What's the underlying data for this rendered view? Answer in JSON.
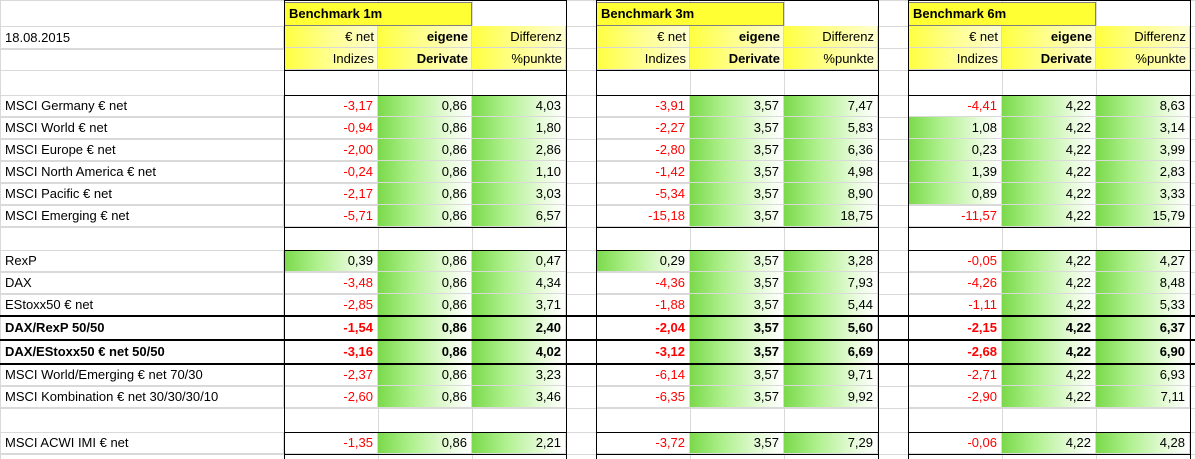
{
  "date": "18.08.2015",
  "benchmarks": [
    {
      "label": "Benchmark 1m"
    },
    {
      "label": "Benchmark 3m"
    },
    {
      "label": "Benchmark 6m"
    }
  ],
  "col_headers": {
    "net_line1": "€ net",
    "net_line2": "Indizes",
    "eig_line1": "eigene",
    "eig_line2": "Derivate",
    "diff_line1": "Differenz",
    "diff_line2": "%punkte"
  },
  "rows": [
    {
      "label": "MSCI Germany € net",
      "bold": false,
      "vals": [
        [
          "-3,17",
          "0,86",
          "4,03"
        ],
        [
          "-3,91",
          "3,57",
          "7,47"
        ],
        [
          "-4,41",
          "4,22",
          "8,63"
        ]
      ]
    },
    {
      "label": "MSCI World € net",
      "bold": false,
      "vals": [
        [
          "-0,94",
          "0,86",
          "1,80"
        ],
        [
          "-2,27",
          "3,57",
          "5,83"
        ],
        [
          "1,08",
          "4,22",
          "3,14"
        ]
      ]
    },
    {
      "label": "MSCI Europe € net",
      "bold": false,
      "vals": [
        [
          "-2,00",
          "0,86",
          "2,86"
        ],
        [
          "-2,80",
          "3,57",
          "6,36"
        ],
        [
          "0,23",
          "4,22",
          "3,99"
        ]
      ]
    },
    {
      "label": "MSCI North America € net",
      "bold": false,
      "vals": [
        [
          "-0,24",
          "0,86",
          "1,10"
        ],
        [
          "-1,42",
          "3,57",
          "4,98"
        ],
        [
          "1,39",
          "4,22",
          "2,83"
        ]
      ]
    },
    {
      "label": "MSCI Pacific € net",
      "bold": false,
      "vals": [
        [
          "-2,17",
          "0,86",
          "3,03"
        ],
        [
          "-5,34",
          "3,57",
          "8,90"
        ],
        [
          "0,89",
          "4,22",
          "3,33"
        ]
      ]
    },
    {
      "label": "MSCI Emerging € net",
      "bold": false,
      "vals": [
        [
          "-5,71",
          "0,86",
          "6,57"
        ],
        [
          "-15,18",
          "3,57",
          "18,75"
        ],
        [
          "-11,57",
          "4,22",
          "15,79"
        ]
      ]
    },
    null,
    {
      "label": "RexP",
      "bold": false,
      "vals": [
        [
          "0,39",
          "0,86",
          "0,47"
        ],
        [
          "0,29",
          "3,57",
          "3,28"
        ],
        [
          "-0,05",
          "4,22",
          "4,27"
        ]
      ]
    },
    {
      "label": "DAX",
      "bold": false,
      "vals": [
        [
          "-3,48",
          "0,86",
          "4,34"
        ],
        [
          "-4,36",
          "3,57",
          "7,93"
        ],
        [
          "-4,26",
          "4,22",
          "8,48"
        ]
      ]
    },
    {
      "label": "EStoxx50 € net",
      "bold": false,
      "vals": [
        [
          "-2,85",
          "0,86",
          "3,71"
        ],
        [
          "-1,88",
          "3,57",
          "5,44"
        ],
        [
          "-1,11",
          "4,22",
          "5,33"
        ]
      ]
    },
    {
      "label": "DAX/RexP 50/50",
      "bold": true,
      "vals": [
        [
          "-1,54",
          "0,86",
          "2,40"
        ],
        [
          "-2,04",
          "3,57",
          "5,60"
        ],
        [
          "-2,15",
          "4,22",
          "6,37"
        ]
      ]
    },
    {
      "label": "DAX/EStoxx50 € net 50/50",
      "bold": true,
      "vals": [
        [
          "-3,16",
          "0,86",
          "4,02"
        ],
        [
          "-3,12",
          "3,57",
          "6,69"
        ],
        [
          "-2,68",
          "4,22",
          "6,90"
        ]
      ]
    },
    {
      "label": "MSCI World/Emerging € net 70/30",
      "bold": false,
      "vals": [
        [
          "-2,37",
          "0,86",
          "3,23"
        ],
        [
          "-6,14",
          "3,57",
          "9,71"
        ],
        [
          "-2,71",
          "4,22",
          "6,93"
        ]
      ]
    },
    {
      "label": "MSCI Kombination € net 30/30/30/10",
      "bold": false,
      "vals": [
        [
          "-2,60",
          "0,86",
          "3,46"
        ],
        [
          "-6,35",
          "3,57",
          "9,92"
        ],
        [
          "-2,90",
          "4,22",
          "7,11"
        ]
      ]
    },
    null,
    {
      "label": "MSCI ACWI IMI € net",
      "bold": false,
      "vals": [
        [
          "-1,35",
          "0,86",
          "2,21"
        ],
        [
          "-3,72",
          "3,57",
          "7,29"
        ],
        [
          "-0,06",
          "4,22",
          "4,28"
        ]
      ]
    }
  ]
}
